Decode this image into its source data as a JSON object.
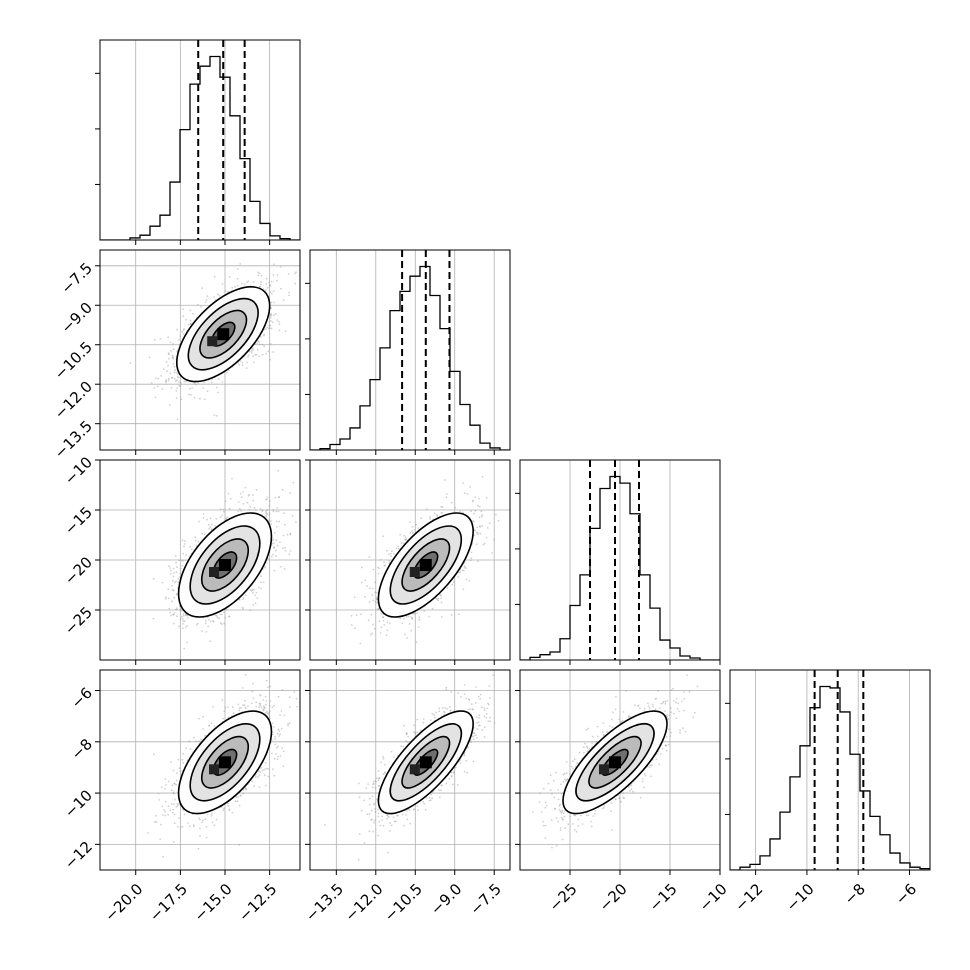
{
  "chart_data": {
    "type": "corner",
    "grid": true,
    "dimensions": [
      {
        "range": [
          -22,
          -10.8
        ],
        "ticks": [
          -20.0,
          -17.5,
          -15.0,
          -12.5
        ],
        "tick_labels": [
          "−20.0",
          "−17.5",
          "−15.0",
          "−12.5"
        ],
        "quantiles": [
          -16.5,
          -15.1,
          -13.9
        ],
        "hist_peak": 1330
      },
      {
        "range": [
          -14.5,
          -6.9
        ],
        "ticks": [
          -13.5,
          -12.0,
          -10.5,
          -9.0,
          -7.5
        ],
        "tick_labels": [
          "−13.5",
          "−12.0",
          "−10.5",
          "−9.0",
          "−7.5"
        ],
        "quantiles": [
          -11.0,
          -10.1,
          -9.2
        ],
        "hist_peak": 1330
      },
      {
        "range": [
          -30,
          -10
        ],
        "ticks": [
          -25,
          -20,
          -15,
          -10
        ],
        "tick_labels": [
          "−25",
          "−20",
          "−15",
          "−10"
        ],
        "quantiles": [
          -23.0,
          -20.5,
          -18.1
        ],
        "hist_peak": 1380
      },
      {
        "range": [
          -13.0,
          -5.2
        ],
        "ticks": [
          -12,
          -10,
          -8,
          -6
        ],
        "tick_labels": [
          "−12",
          "−10",
          "−8",
          "−6"
        ],
        "quantiles": [
          -9.7,
          -8.8,
          -7.8
        ],
        "hist_peak": 1300
      }
    ],
    "histograms": [
      {
        "dim": 0,
        "bin_edges": [
          -22,
          -21.44,
          -20.88,
          -20.32,
          -19.76,
          -19.2,
          -18.64,
          -18.08,
          -17.52,
          -16.96,
          -16.4,
          -15.84,
          -15.28,
          -14.72,
          -14.16,
          -13.6,
          -13.04,
          -12.48,
          -11.92,
          -11.36,
          -10.8
        ],
        "counts": [
          0,
          0,
          0,
          15,
          35,
          100,
          180,
          420,
          800,
          1130,
          1260,
          1330,
          1180,
          900,
          590,
          280,
          120,
          30,
          10,
          0
        ]
      },
      {
        "dim": 1,
        "bin_edges": [
          -14.5,
          -14.12,
          -13.74,
          -13.36,
          -12.98,
          -12.6,
          -12.22,
          -11.84,
          -11.46,
          -11.08,
          -10.7,
          -10.32,
          -9.94,
          -9.56,
          -9.18,
          -8.8,
          -8.42,
          -8.04,
          -7.66,
          -7.28,
          -6.9
        ],
        "counts": [
          0,
          10,
          40,
          80,
          160,
          320,
          510,
          740,
          1010,
          1150,
          1260,
          1330,
          1120,
          880,
          570,
          330,
          180,
          50,
          15,
          0
        ]
      },
      {
        "dim": 2,
        "bin_edges": [
          -30,
          -29,
          -28,
          -27,
          -26,
          -25,
          -24,
          -23,
          -22,
          -21,
          -20,
          -19,
          -18,
          -17,
          -16,
          -15,
          -14,
          -13,
          -12,
          -11,
          -10
        ],
        "counts": [
          0,
          20,
          40,
          60,
          160,
          410,
          640,
          990,
          1290,
          1380,
          1330,
          1100,
          640,
          390,
          150,
          90,
          30,
          15,
          0,
          0
        ]
      },
      {
        "dim": 3,
        "bin_edges": [
          -13.0,
          -12.61,
          -12.22,
          -11.83,
          -11.44,
          -11.05,
          -10.66,
          -10.27,
          -9.88,
          -9.49,
          -9.1,
          -8.71,
          -8.32,
          -7.93,
          -7.54,
          -7.15,
          -6.76,
          -6.37,
          -5.98,
          -5.59,
          -5.2
        ],
        "counts": [
          0,
          20,
          40,
          100,
          220,
          410,
          660,
          880,
          1150,
          1300,
          1290,
          1120,
          820,
          560,
          380,
          250,
          120,
          50,
          20,
          10
        ]
      }
    ],
    "joint_distributions": [
      {
        "x_dim": 0,
        "y_dim": 1,
        "x_mean": -15.1,
        "y_mean": -10.1,
        "x_sd": 1.3,
        "y_sd": 0.9,
        "corr": 0.6
      },
      {
        "x_dim": 0,
        "y_dim": 2,
        "x_mean": -15.0,
        "y_mean": -20.5,
        "x_sd": 1.3,
        "y_sd": 2.6,
        "corr": 0.55
      },
      {
        "x_dim": 1,
        "y_dim": 2,
        "x_mean": -10.1,
        "y_mean": -20.5,
        "x_sd": 0.9,
        "y_sd": 2.6,
        "corr": 0.65
      },
      {
        "x_dim": 0,
        "y_dim": 3,
        "x_mean": -15.0,
        "y_mean": -8.8,
        "x_sd": 1.3,
        "y_sd": 1.0,
        "corr": 0.6
      },
      {
        "x_dim": 1,
        "y_dim": 3,
        "x_mean": -10.1,
        "y_mean": -8.8,
        "x_sd": 0.9,
        "y_sd": 1.0,
        "corr": 0.75
      },
      {
        "x_dim": 2,
        "y_dim": 3,
        "x_mean": -20.5,
        "y_mean": -8.8,
        "x_sd": 2.6,
        "y_sd": 1.0,
        "corr": 0.75
      }
    ],
    "contour_levels_sigma": [
      0.5,
      1.0,
      1.5,
      2.0
    ],
    "colors": {
      "line": "#000000",
      "grid": "#b0b0b0",
      "points": "#9a9a9a",
      "fill_max": "#000000"
    }
  }
}
